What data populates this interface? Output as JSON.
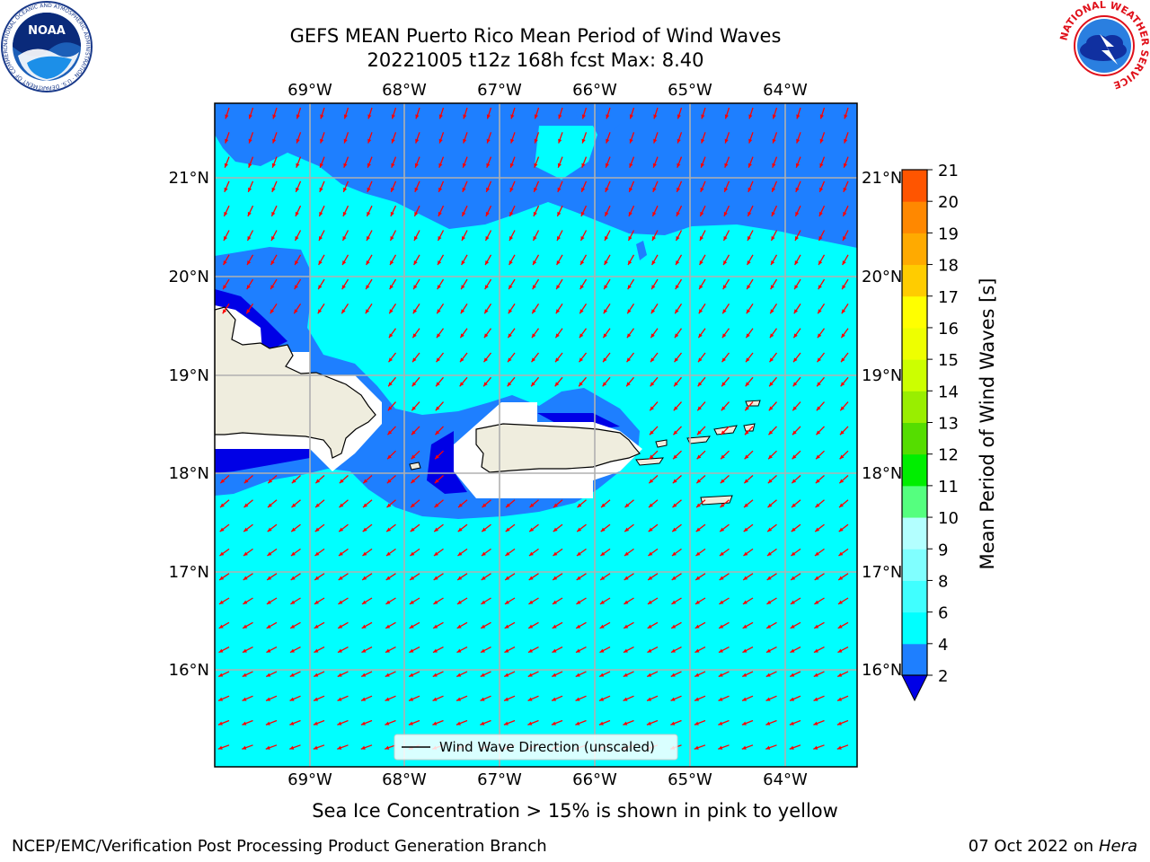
{
  "header": {
    "title_line1": "GEFS MEAN Puerto Rico Mean Period of Wind Waves",
    "title_line2": "20221005 t12z 168h fcst   Max: 8.40"
  },
  "logos": {
    "left_text": "NOAA",
    "left_ring_text": "NATIONAL OCEANIC AND ATMOSPHERIC ADMINISTRATION · U.S. DEPARTMENT OF COMMERCE",
    "right_ring_text": "NATIONAL WEATHER SERVICE"
  },
  "map": {
    "lon_ticks": [
      "69°W",
      "68°W",
      "67°W",
      "66°W",
      "65°W",
      "64°W"
    ],
    "lat_ticks": [
      "21°N",
      "20°N",
      "19°N",
      "18°N",
      "17°N",
      "16°N"
    ],
    "legend_label": "Wind Wave Direction (unscaled)",
    "colors": {
      "ocean_light": "#00ffff",
      "ocean_mid": "#1e7fff",
      "ocean_dark": "#0000e6",
      "land": "#efedde",
      "arrow": "#ff0000"
    }
  },
  "colorbar": {
    "label": "Mean Period of Wind Waves [s]",
    "ticks": [
      "2",
      "4",
      "6",
      "8",
      "9",
      "10",
      "11",
      "12",
      "13",
      "14",
      "15",
      "16",
      "17",
      "18",
      "19",
      "20",
      "21"
    ],
    "colors": [
      "#1e7fff",
      "#00ffff",
      "#40ffff",
      "#80ffff",
      "#b3ffff",
      "#55ff7f",
      "#00ee00",
      "#55dd00",
      "#99ee00",
      "#ccff00",
      "#eeff00",
      "#ffff00",
      "#ffcc00",
      "#ffaa00",
      "#ff8800",
      "#ff5500",
      "#ff2200",
      "#ff0000"
    ],
    "extend_color": "#0000e6"
  },
  "footer": {
    "note": "Sea Ice Concentration > 15% is shown in pink to yellow",
    "left": "NCEP/EMC/Verification Post Processing Product Generation Branch",
    "date": "07 Oct 2022 on ",
    "machine": "Hera"
  }
}
